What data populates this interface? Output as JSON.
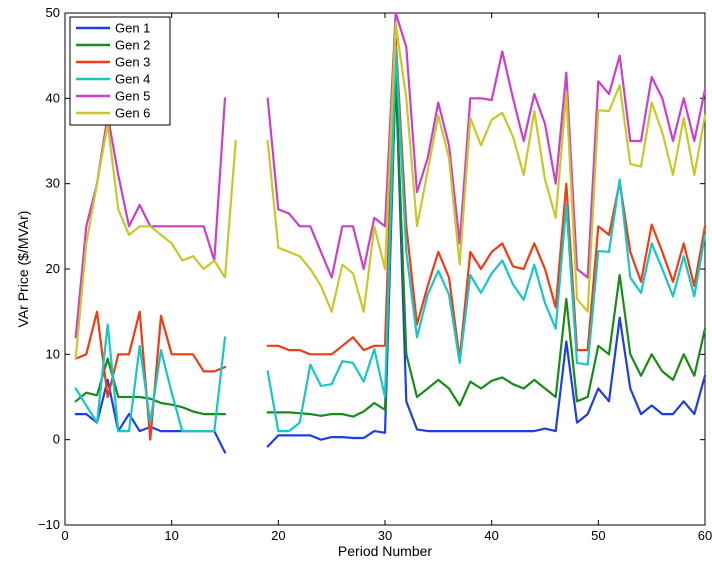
{
  "chart_data": {
    "type": "line",
    "title": "",
    "xlabel": "Period Number",
    "ylabel": "VAr Price ($/MVAr)",
    "xlim": [
      0,
      60
    ],
    "ylim": [
      -10,
      50
    ],
    "xticks": [
      0,
      10,
      20,
      30,
      40,
      50,
      60
    ],
    "yticks": [
      -10,
      0,
      10,
      20,
      30,
      40,
      50
    ],
    "xtick_labels": [
      "0",
      "10",
      "20",
      "30",
      "40",
      "50",
      "60"
    ],
    "ytick_labels": [
      "−10",
      "0",
      "10",
      "20",
      "30",
      "40",
      "50"
    ],
    "grid": false,
    "legend_position": "top-left",
    "x": [
      1,
      2,
      3,
      4,
      5,
      6,
      7,
      8,
      9,
      10,
      11,
      12,
      13,
      14,
      15,
      16,
      17,
      18,
      19,
      20,
      21,
      22,
      23,
      24,
      25,
      26,
      27,
      28,
      29,
      30,
      31,
      32,
      33,
      34,
      35,
      36,
      37,
      38,
      39,
      40,
      41,
      42,
      43,
      44,
      45,
      46,
      47,
      48,
      49,
      50,
      51,
      52,
      53,
      54,
      55,
      56,
      57,
      58,
      59,
      60
    ],
    "series": [
      {
        "name": "Gen 1",
        "color": "#1f3fe6",
        "values": [
          3,
          3,
          2,
          7,
          1,
          3,
          1,
          1.5,
          1,
          1,
          1,
          1,
          1,
          1,
          -1.5,
          null,
          null,
          null,
          -0.8,
          0.5,
          0.5,
          0.5,
          0.5,
          0,
          0.3,
          0.3,
          0.2,
          0.2,
          1,
          0.8,
          43,
          4.5,
          1.2,
          1,
          1,
          1,
          1,
          1,
          1,
          1,
          1,
          1,
          1,
          1,
          1.3,
          1,
          11.5,
          2,
          3,
          6,
          4.5,
          14.3,
          6,
          3,
          4,
          3,
          3,
          4.5,
          3,
          7.5
        ]
      },
      {
        "name": "Gen 2",
        "color": "#1a8a1a",
        "values": [
          4.5,
          5.5,
          5.2,
          9.5,
          5,
          5,
          5,
          4.8,
          4.3,
          4.1,
          3.8,
          3.3,
          3,
          3,
          3,
          null,
          null,
          null,
          3.2,
          3.2,
          3.2,
          3.1,
          3,
          2.8,
          3,
          3,
          2.7,
          3.3,
          4.3,
          3.5,
          43,
          10,
          5,
          6,
          7,
          6,
          4,
          6.8,
          6,
          6.9,
          7.3,
          6.5,
          6,
          7,
          6,
          5,
          16.5,
          4.5,
          5,
          11,
          10,
          19.3,
          10,
          7.5,
          10,
          8,
          7,
          10,
          7.5,
          13
        ]
      },
      {
        "name": "Gen 3",
        "color": "#f03c14",
        "values": [
          9.5,
          10,
          15,
          5,
          10,
          10,
          15,
          0,
          14.5,
          10,
          10,
          10,
          8,
          8,
          8.5,
          null,
          null,
          null,
          11,
          11,
          10.5,
          10.5,
          10,
          10,
          10,
          11,
          12,
          10.5,
          11,
          11,
          47,
          25,
          13.5,
          18,
          22,
          19,
          9.5,
          22,
          20,
          22,
          23,
          20.3,
          20,
          23,
          20,
          15.5,
          30,
          10.5,
          10.5,
          25,
          24,
          30.2,
          22,
          18.5,
          25.2,
          22,
          18.5,
          23,
          18,
          25
        ]
      },
      {
        "name": "Gen 4",
        "color": "#18c6c6",
        "values": [
          6,
          4,
          2,
          13.5,
          1,
          1,
          11,
          2,
          10.5,
          5.5,
          1,
          1,
          1,
          1,
          12,
          null,
          null,
          null,
          8,
          1,
          1,
          2,
          8.8,
          6.3,
          6.5,
          9.2,
          9,
          6.8,
          10.6,
          5,
          46,
          22,
          12,
          17,
          19.8,
          17,
          9,
          19.3,
          17.2,
          19.5,
          21,
          18.2,
          16.4,
          20.5,
          16,
          13,
          27.5,
          9,
          8.8,
          22.1,
          22,
          30.5,
          19,
          17.2,
          23,
          20,
          16.8,
          21.5,
          16.8,
          24
        ]
      },
      {
        "name": "Gen 5",
        "color": "#cc3fcc",
        "values": [
          12,
          25,
          30,
          38,
          31,
          25,
          27.5,
          25,
          25,
          25,
          25,
          25,
          25,
          21,
          40,
          null,
          null,
          null,
          40,
          27,
          26.5,
          25,
          25,
          22,
          19,
          25,
          25,
          20,
          26,
          25,
          50,
          46,
          29,
          33,
          39.5,
          34.5,
          23,
          40,
          40,
          39.8,
          45.5,
          40,
          35,
          40.5,
          37,
          30,
          43,
          20,
          19,
          42,
          40.5,
          45,
          35,
          35,
          42.5,
          40,
          35,
          40,
          35,
          41
        ]
      },
      {
        "name": "Gen 6",
        "color": "#c8c828",
        "values": [
          9.5,
          23,
          30,
          37,
          27,
          24,
          25,
          25,
          24,
          23,
          21,
          21.5,
          20,
          21,
          19,
          35,
          null,
          null,
          35,
          22.5,
          22,
          21.5,
          20,
          18,
          15,
          20.5,
          19.5,
          15,
          25,
          20,
          48.8,
          40,
          25,
          31.5,
          38,
          33,
          20.5,
          37.7,
          34.5,
          37.5,
          38.3,
          35.5,
          31,
          38.5,
          30.5,
          26,
          40.7,
          16.5,
          15,
          38.6,
          38.5,
          41.5,
          32.3,
          32,
          39.5,
          36,
          31,
          37.7,
          31,
          38
        ]
      }
    ]
  }
}
